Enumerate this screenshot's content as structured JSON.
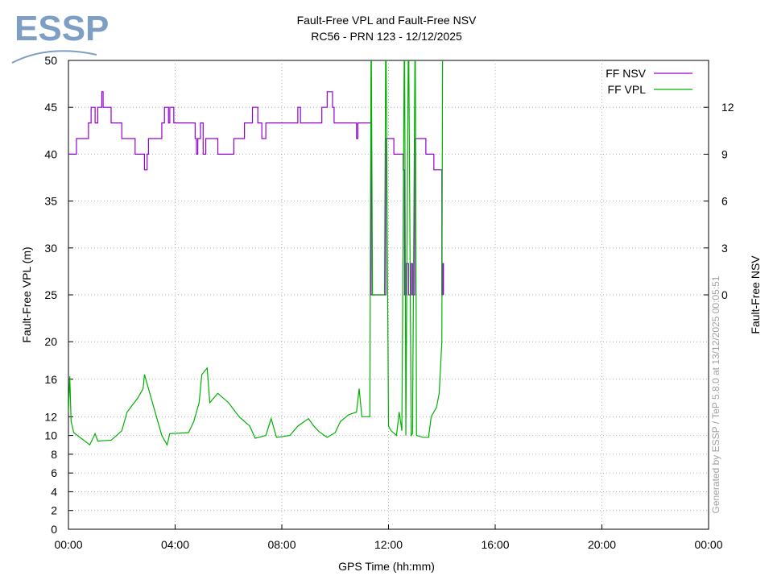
{
  "logo": "ESSP",
  "footer_note": "Generated by ESSP / TeP 5.8.0 at 13/12/2025 00:05:51",
  "chart_data": {
    "type": "line",
    "title": "Fault-Free VPL and Fault-Free NSV",
    "subtitle": "RC56 - PRN 123 - 12/12/2025",
    "xlabel": "GPS Time (hh:mm)",
    "ylabel": "Fault-Free VPL (m)",
    "y2label": "Fault-Free NSV",
    "xlim": [
      0,
      24
    ],
    "xticks": [
      {
        "value": 0,
        "label": "00:00"
      },
      {
        "value": 4,
        "label": "04:00"
      },
      {
        "value": 8,
        "label": "08:00"
      },
      {
        "value": 12,
        "label": "12:00"
      },
      {
        "value": 16,
        "label": "16:00"
      },
      {
        "value": 20,
        "label": "20:00"
      },
      {
        "value": 24,
        "label": "00:00"
      }
    ],
    "ylim": [
      0,
      50
    ],
    "yticks": [
      0,
      2,
      4,
      6,
      8,
      10,
      12,
      16,
      20,
      25,
      30,
      35,
      40,
      45,
      50
    ],
    "y2lim": [
      -15,
      15
    ],
    "y2ticks": [
      0,
      3,
      6,
      9,
      12
    ],
    "grid": true,
    "legend": "top-right",
    "series": [
      {
        "name": "FF NSV",
        "color": "#9400d3",
        "axis": "y2",
        "step": true,
        "x": [
          0,
          0.3,
          0.75,
          0.85,
          1.0,
          1.1,
          1.25,
          1.3,
          1.6,
          2.0,
          2.5,
          2.85,
          2.95,
          3.0,
          3.5,
          3.6,
          3.75,
          3.8,
          3.95,
          4.75,
          4.8,
          4.85,
          4.95,
          5.05,
          5.15,
          5.6,
          6.2,
          6.6,
          6.9,
          7.1,
          7.25,
          7.4,
          7.5,
          8.6,
          8.7,
          8.85,
          9.5,
          9.7,
          9.9,
          9.96,
          10.3,
          10.8,
          10.85,
          11.35,
          11.9,
          12.2,
          12.55,
          12.6,
          12.65,
          12.75,
          12.85,
          12.9,
          12.98,
          13.4,
          13.7,
          14.0,
          14.03,
          14.06
        ],
        "values": [
          9,
          10,
          11,
          12,
          11,
          12,
          13,
          12,
          11,
          10,
          9,
          8,
          9,
          10,
          11,
          12,
          11,
          12,
          11,
          10,
          9,
          10,
          11,
          9,
          10,
          9,
          10,
          11,
          12,
          11,
          10,
          11,
          11,
          12,
          11,
          11,
          12,
          13,
          12,
          11,
          11,
          10,
          11,
          0,
          10,
          9,
          8,
          0,
          2,
          0,
          2,
          0,
          10,
          9,
          8,
          0,
          2,
          0
        ]
      },
      {
        "name": "FF VPL",
        "color": "#00b000",
        "x": [
          0,
          0.05,
          0.1,
          0.2,
          0.8,
          1.0,
          1.1,
          1.6,
          2.0,
          2.2,
          2.6,
          2.8,
          2.85,
          3.0,
          3.3,
          3.5,
          3.7,
          3.8,
          4.5,
          4.7,
          4.9,
          5.0,
          5.2,
          5.3,
          5.6,
          6.0,
          6.4,
          6.8,
          7.0,
          7.4,
          7.6,
          7.8,
          8.3,
          8.6,
          9.0,
          9.2,
          9.4,
          9.7,
          10.0,
          10.2,
          10.5,
          10.8,
          10.9,
          11.0,
          11.3,
          11.35,
          11.4,
          11.85,
          11.9,
          12.0,
          12.1,
          12.3,
          12.4,
          12.5,
          12.6,
          12.65,
          12.75,
          12.85,
          12.9,
          13.0,
          13.05,
          13.3,
          13.5,
          13.6,
          13.8,
          13.9,
          14.0,
          14.03
        ],
        "values": [
          12.5,
          16.3,
          11.5,
          10.3,
          9,
          10.2,
          9.4,
          9.5,
          10.5,
          12.5,
          14,
          15,
          16.5,
          15,
          12,
          10,
          9,
          10.2,
          10.3,
          11.5,
          13.5,
          16.5,
          17.2,
          13.5,
          14.5,
          13.5,
          12,
          11,
          9.7,
          10,
          11.8,
          9.8,
          10,
          11,
          11.8,
          11,
          10.4,
          9.8,
          10.3,
          11.5,
          12.2,
          12.5,
          15,
          12,
          12,
          55,
          25,
          25,
          55,
          11,
          10.5,
          10,
          12.5,
          10.5,
          55,
          10,
          55,
          10,
          10.2,
          55,
          10,
          9.8,
          9.8,
          12,
          13,
          14.5,
          20,
          55
        ]
      }
    ]
  }
}
